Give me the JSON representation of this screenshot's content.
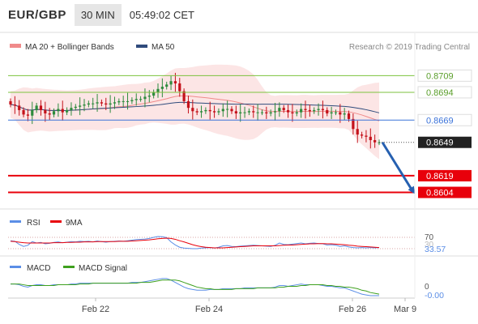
{
  "header": {
    "symbol": "EUR/GBP",
    "timeframe": "30 MIN",
    "time": "05:49:02 CET"
  },
  "watermark": "Research © 2019 Trading Central",
  "colors": {
    "accent_blue": "#3b73d9",
    "resistance_green": "#7cc23e",
    "support_red": "#e8000b",
    "current_price_bg": "#222222",
    "bollinger": "#f4a3a3",
    "ma50": "#2f4b7c",
    "rsi": "#5b8ee6",
    "rsi_ma": "#e8000b",
    "macd": "#5b8ee6",
    "macd_signal": "#3ea01e",
    "arrow": "#2660b0"
  },
  "chart_data": [
    {
      "type": "candlestick",
      "instrument": "EUR/GBP",
      "timeframe": "30 MIN",
      "legend": [
        {
          "name": "MA 20 + Bollinger Bands",
          "color": "#f08a8a",
          "icon": "band-swatch-icon"
        },
        {
          "name": "MA 50",
          "color": "#2f4b7c",
          "icon": "line-swatch-icon"
        }
      ],
      "ylim": [
        0.8592,
        0.8726
      ],
      "x_ticks": [
        "Feb 22",
        "Feb 24",
        "Feb 26",
        "Mar 9"
      ],
      "close": [
        0.8683,
        0.8682,
        0.8678,
        0.8674,
        0.8673,
        0.8678,
        0.8682,
        0.8678,
        0.8675,
        0.8674,
        0.8677,
        0.8679,
        0.8676,
        0.8678,
        0.868,
        0.8681,
        0.8682,
        0.8683,
        0.8684,
        0.8684,
        0.8685,
        0.8684,
        0.8683,
        0.8684,
        0.8685,
        0.8686,
        0.8686,
        0.8686,
        0.8687,
        0.8688,
        0.8688,
        0.869,
        0.8691,
        0.8694,
        0.8697,
        0.8699,
        0.8701,
        0.8704,
        0.8702,
        0.8695,
        0.8686,
        0.868,
        0.8677,
        0.8676,
        0.8677,
        0.8678,
        0.8677,
        0.8676,
        0.8677,
        0.8679,
        0.8679,
        0.8677,
        0.8675,
        0.8676,
        0.8676,
        0.8677,
        0.8676,
        0.8676,
        0.8676,
        0.8675,
        0.8676,
        0.8677,
        0.868,
        0.8678,
        0.8676,
        0.8675,
        0.8676,
        0.8679,
        0.8678,
        0.8677,
        0.8678,
        0.8679,
        0.8678,
        0.8675,
        0.8676,
        0.8676,
        0.8674,
        0.8675,
        0.867,
        0.8661,
        0.8656,
        0.8655,
        0.8654,
        0.8651,
        0.8649,
        0.8649
      ],
      "horizontal_lines": [
        {
          "name": "resistance-2",
          "value": 0.8709,
          "label": "0.8709",
          "style": "solid",
          "color": "#7cc23e"
        },
        {
          "name": "resistance-1",
          "value": 0.8694,
          "label": "0.8694",
          "style": "solid",
          "color": "#7cc23e"
        },
        {
          "name": "pivot",
          "value": 0.8669,
          "label": "0.8669",
          "style": "solid",
          "color": "#3b73d9"
        },
        {
          "name": "last-price",
          "value": 0.8649,
          "label": "0.8649",
          "style": "dotted",
          "color": "#222222"
        },
        {
          "name": "support-1",
          "value": 0.8619,
          "label": "0.8619",
          "style": "solid",
          "color": "#e8000b"
        },
        {
          "name": "support-2",
          "value": 0.8604,
          "label": "0.8604",
          "style": "solid",
          "color": "#e8000b"
        }
      ],
      "arrow": {
        "from_value": 0.8649,
        "to_value": 0.8604,
        "direction": "down"
      }
    },
    {
      "type": "line",
      "name": "RSI panel",
      "legend": [
        {
          "name": "RSI",
          "color": "#5b8ee6"
        },
        {
          "name": "9MA",
          "color": "#e8000b"
        }
      ],
      "ylim": [
        10,
        90
      ],
      "levels": [
        {
          "value": 70,
          "label": "70"
        },
        {
          "value": 30,
          "label": "30"
        }
      ],
      "last_value": "33.57",
      "rsi": [
        58,
        56,
        45,
        38,
        42,
        55,
        50,
        52,
        47,
        49,
        52,
        54,
        51,
        53,
        55,
        54,
        56,
        55,
        56,
        54,
        57,
        55,
        53,
        55,
        56,
        57,
        56,
        58,
        60,
        62,
        63,
        64,
        66,
        70,
        73,
        72,
        69,
        54,
        43,
        35,
        32,
        31,
        30,
        30,
        32,
        33,
        34,
        32,
        35,
        40,
        41,
        38,
        37,
        39,
        40,
        41,
        42,
        41,
        40,
        39,
        38,
        42,
        50,
        45,
        44,
        46,
        48,
        50,
        47,
        49,
        50,
        48,
        47,
        43,
        44,
        42,
        38,
        40,
        36,
        34,
        33,
        34,
        33,
        34,
        33,
        34
      ],
      "rsi_ma": [
        56,
        55,
        53,
        51,
        50,
        50,
        50,
        50,
        50,
        50,
        51,
        51,
        51,
        52,
        52,
        53,
        53,
        54,
        54,
        54,
        55,
        55,
        55,
        55,
        55,
        56,
        56,
        56,
        57,
        58,
        59,
        60,
        61,
        63,
        65,
        66,
        67,
        66,
        63,
        58,
        54,
        49,
        44,
        40,
        37,
        35,
        34,
        33,
        33,
        33,
        34,
        35,
        36,
        37,
        38,
        39,
        40,
        40,
        40,
        40,
        40,
        40,
        41,
        42,
        43,
        43,
        44,
        45,
        46,
        47,
        47,
        48,
        48,
        47,
        47,
        46,
        45,
        44,
        42,
        41,
        39,
        38,
        37,
        36,
        35,
        34
      ]
    },
    {
      "type": "line",
      "name": "MACD panel",
      "legend": [
        {
          "name": "MACD",
          "color": "#5b8ee6"
        },
        {
          "name": "MACD Signal",
          "color": "#3ea01e"
        }
      ],
      "ylim": [
        -0.0015,
        0.0012
      ],
      "zero_label": "0",
      "last_value": "-0.00",
      "macd": [
        0.0001,
        0.0001,
        0.0,
        -0.0002,
        -0.0003,
        -0.0001,
        -0.0,
        -0.0,
        -0.0001,
        -0.0001,
        -0.0,
        0.0,
        0.0,
        0.0,
        0.0001,
        0.0001,
        0.0002,
        0.0002,
        0.0002,
        0.0002,
        0.0002,
        0.0002,
        0.0002,
        0.0002,
        0.0002,
        0.0002,
        0.0002,
        0.0002,
        0.0003,
        0.0003,
        0.0003,
        0.0004,
        0.0005,
        0.0006,
        0.0007,
        0.0008,
        0.0008,
        0.0006,
        0.0003,
        0.0,
        -0.0003,
        -0.0005,
        -0.0006,
        -0.0007,
        -0.0007,
        -0.0007,
        -0.0006,
        -0.0006,
        -0.0006,
        -0.0005,
        -0.0005,
        -0.0005,
        -0.0005,
        -0.0005,
        -0.0004,
        -0.0004,
        -0.0004,
        -0.0004,
        -0.0004,
        -0.0004,
        -0.0004,
        -0.0003,
        -0.0001,
        -0.0001,
        -0.0002,
        -0.0001,
        -0.0,
        0.0001,
        0.0,
        0.0,
        0.0,
        -0.0,
        -0.0001,
        -0.0002,
        -0.0002,
        -0.0003,
        -0.0004,
        -0.0004,
        -0.0006,
        -0.0008,
        -0.001,
        -0.0012,
        -0.0013,
        -0.0014,
        -0.0014,
        -0.0014
      ],
      "macd_signal": [
        0.0001,
        0.0001,
        0.0001,
        0.0,
        -0.0001,
        -0.0001,
        -0.0001,
        -0.0001,
        -0.0001,
        -0.0001,
        -0.0001,
        -0.0,
        -0.0,
        0.0,
        0.0,
        0.0,
        0.0001,
        0.0001,
        0.0001,
        0.0002,
        0.0002,
        0.0002,
        0.0002,
        0.0002,
        0.0002,
        0.0002,
        0.0002,
        0.0002,
        0.0002,
        0.0002,
        0.0003,
        0.0003,
        0.0003,
        0.0004,
        0.0005,
        0.0006,
        0.0006,
        0.0006,
        0.0006,
        0.0005,
        0.0003,
        0.0001,
        -0.0001,
        -0.0003,
        -0.0004,
        -0.0005,
        -0.0005,
        -0.0006,
        -0.0006,
        -0.0006,
        -0.0006,
        -0.0006,
        -0.0005,
        -0.0005,
        -0.0005,
        -0.0005,
        -0.0005,
        -0.0004,
        -0.0004,
        -0.0004,
        -0.0004,
        -0.0004,
        -0.0003,
        -0.0003,
        -0.0002,
        -0.0002,
        -0.0002,
        -0.0001,
        -0.0001,
        -0.0,
        -0.0,
        -0.0,
        -0.0,
        -0.0001,
        -0.0001,
        -0.0002,
        -0.0002,
        -0.0003,
        -0.0003,
        -0.0004,
        -0.0005,
        -0.0007,
        -0.0008,
        -0.001,
        -0.0011,
        -0.0012
      ]
    }
  ]
}
